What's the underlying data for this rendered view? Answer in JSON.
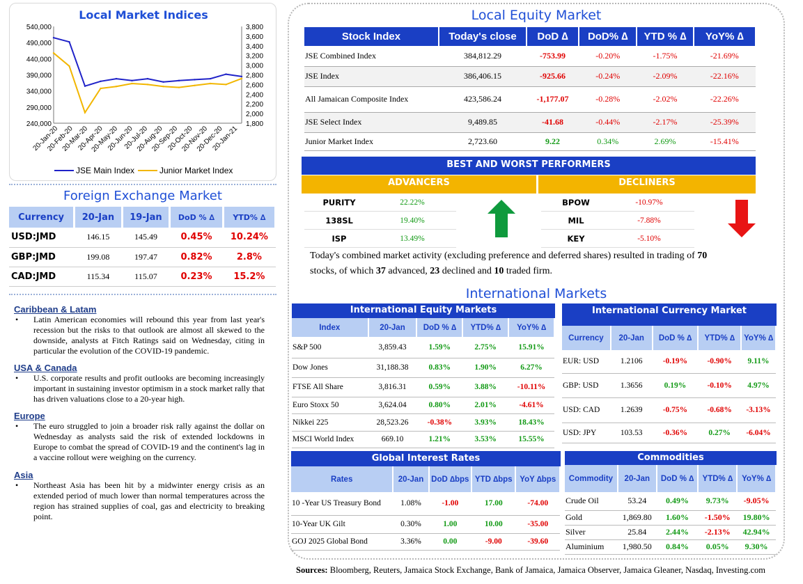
{
  "local_indices": {
    "title": "Local Market Indices",
    "left_axis": [
      "540,000",
      "490,000",
      "440,000",
      "390,000",
      "340,000",
      "290,000",
      "240,000"
    ],
    "right_axis": [
      "3,800",
      "3,600",
      "3,400",
      "3,200",
      "3,000",
      "2,800",
      "2,600",
      "2,400",
      "2,200",
      "2,000",
      "1,800"
    ],
    "x_labels": [
      "20-Jan-20",
      "20-Feb-20",
      "20-Mar-20",
      "20-Apr-20",
      "20-May-20",
      "20-Jun-20",
      "20-Jul-20",
      "20-Aug-20",
      "20-Sep-20",
      "20-Oct-20",
      "20-Nov-20",
      "20-Dec-20",
      "20-Jan-21"
    ],
    "legend": [
      "JSE Main Index",
      "Junior Market Index"
    ],
    "colors": {
      "main": "#1f22c8",
      "junior": "#f2b600"
    }
  },
  "chart_data": {
    "type": "line",
    "title": "Local Market Indices",
    "x": [
      "20-Jan-20",
      "20-Feb-20",
      "20-Mar-20",
      "20-Apr-20",
      "20-May-20",
      "20-Jun-20",
      "20-Jul-20",
      "20-Aug-20",
      "20-Sep-20",
      "20-Oct-20",
      "20-Nov-20",
      "20-Dec-20",
      "20-Jan-21"
    ],
    "series": [
      {
        "name": "JSE Main Index",
        "axis": "left",
        "values": [
          505000,
          492000,
          355000,
          370000,
          378000,
          372000,
          378000,
          368000,
          372000,
          375000,
          378000,
          392000,
          384812
        ]
      },
      {
        "name": "Junior Market Index",
        "axis": "right",
        "values": [
          3250,
          2980,
          2020,
          2520,
          2560,
          2620,
          2600,
          2560,
          2540,
          2580,
          2620,
          2600,
          2723.6
        ]
      }
    ],
    "ylim_left": [
      240000,
      540000
    ],
    "ylim_right": [
      1800,
      3800
    ]
  },
  "fx": {
    "title": "Foreign Exchange Market",
    "headers": [
      "Currency",
      "20-Jan",
      "19-Jan",
      "DoD % ∆",
      "YTD% ∆"
    ],
    "rows": [
      {
        "cur": "USD:JMD",
        "a": "146.15",
        "b": "145.49",
        "dod": "0.45%",
        "ytd": "10.24%"
      },
      {
        "cur": "GBP:JMD",
        "a": "199.08",
        "b": "197.47",
        "dod": "0.82%",
        "ytd": "2.8%"
      },
      {
        "cur": "CAD:JMD",
        "a": "115.34",
        "b": "115.07",
        "dod": "0.23%",
        "ytd": "15.2%"
      }
    ]
  },
  "news": [
    {
      "head": "Caribbean & Latam",
      "text": "Latin American economies will rebound this year from last year's recession but the risks to that outlook are almost all skewed to the downside, analysts at Fitch Ratings said on Wednesday, citing in particular the evolution of the COVID-19 pandemic."
    },
    {
      "head": "USA & Canada",
      "text": "U.S. corporate results and profit outlooks are becoming increasingly important in sustaining investor optimism in a stock market rally that has driven valuations close to a 20-year high."
    },
    {
      "head": "Europe",
      "text": "The euro struggled to join a broader risk rally against the dollar on Wednesday as analysts said the risk of extended lockdowns in Europe to combat the spread of COVID-19 and the continent's lag in a vaccine rollout were weighing on the currency."
    },
    {
      "head": "Asia",
      "text": "Northeast Asia has been hit by a midwinter energy crisis as an extended period of much lower than normal temperatures across the region has strained supplies of coal, gas and electricity to breaking point."
    }
  ],
  "bullet": "•",
  "equity": {
    "title": "Local Equity Market",
    "headers": [
      "Stock Index",
      "Today's close",
      "DoD  ∆",
      "DoD% ∆",
      "YTD % ∆",
      "YoY% ∆"
    ],
    "rows": [
      {
        "name": "JSE Combined Index",
        "close": "384,812.29",
        "dod": "-753.99",
        "dodp": "-0.20%",
        "ytd": "-1.75%",
        "yoy": "-21.69%"
      },
      {
        "name": "JSE Index",
        "close": "386,406.15",
        "dod": "-925.66",
        "dodp": "-0.24%",
        "ytd": "-2.09%",
        "yoy": "-22.16%"
      },
      {
        "name": "All Jamaican Composite Index",
        "close": "423,586.24",
        "dod": "-1,177.07",
        "dodp": "-0.28%",
        "ytd": "-2.02%",
        "yoy": "-22.26%"
      },
      {
        "name": "JSE Select Index",
        "close": "9,489.85",
        "dod": "-41.68",
        "dodp": "-0.44%",
        "ytd": "-2.17%",
        "yoy": "-25.39%"
      },
      {
        "name": "Junior Market Index",
        "close": "2,723.60",
        "dod": "9.22",
        "dodp": "0.34%",
        "ytd": "2.69%",
        "yoy": "-15.41%"
      }
    ]
  },
  "performers": {
    "title": "BEST AND WORST PERFORMERS",
    "adv_title": "ADVANCERS",
    "dec_title": "DECLINERS",
    "advancers": [
      {
        "t": "PURITY",
        "v": "22.22%"
      },
      {
        "t": "138SL",
        "v": "19.40%"
      },
      {
        "t": "ISP",
        "v": "13.49%"
      }
    ],
    "decliners": [
      {
        "t": "BPOW",
        "v": "-10.97%"
      },
      {
        "t": "MIL",
        "v": "-7.88%"
      },
      {
        "t": "KEY",
        "v": "-5.10%"
      }
    ]
  },
  "activity": {
    "p1": "Today's combined market activity (excluding preference and deferred shares) resulted in trading of ",
    "n1": "70",
    "p2": "stocks, of which ",
    "n2": "37",
    "p3": " advanced, ",
    "n3": "23",
    "p4": " declined and ",
    "n4": "10",
    "p5": " traded firm."
  },
  "intl_title": "International Markets",
  "intl_equity": {
    "title": "International Equity Markets",
    "headers": [
      "Index",
      "20-Jan",
      "DoD % ∆",
      "YTD% ∆",
      "YoY% ∆"
    ],
    "rows": [
      {
        "n": "S&P 500",
        "v": "3,859.43",
        "d": "1.59%",
        "y": "2.75%",
        "yy": "15.91%"
      },
      {
        "n": "Dow Jones",
        "v": "31,188.38",
        "d": "0.83%",
        "y": "1.90%",
        "yy": "6.27%"
      },
      {
        "n": "FTSE All Share",
        "v": "3,816.31",
        "d": "0.59%",
        "y": "3.88%",
        "yy": "-10.11%"
      },
      {
        "n": "Euro Stoxx 50",
        "v": "3,624.04",
        "d": "0.80%",
        "y": "2.01%",
        "yy": "-4.61%"
      },
      {
        "n": "Nikkei 225",
        "v": "28,523.26",
        "d": "-0.38%",
        "y": "3.93%",
        "yy": "18.43%"
      },
      {
        "n": "MSCI World Index",
        "v": "669.10",
        "d": "1.21%",
        "y": "3.53%",
        "yy": "15.55%"
      }
    ]
  },
  "intl_fx": {
    "title": "International Currency Market",
    "headers": [
      "Currency",
      "20-Jan",
      "DoD % ∆",
      "YTD% ∆",
      "YoY% ∆"
    ],
    "rows": [
      {
        "n": "EUR: USD",
        "v": "1.2106",
        "d": "-0.19%",
        "y": "-0.90%",
        "yy": "9.11%"
      },
      {
        "n": "GBP: USD",
        "v": "1.3656",
        "d": "0.19%",
        "y": "-0.10%",
        "yy": "4.97%"
      },
      {
        "n": "USD: CAD",
        "v": "1.2639",
        "d": "-0.75%",
        "y": "-0.68%",
        "yy": "-3.13%"
      },
      {
        "n": "USD: JPY",
        "v": "103.53",
        "d": "-0.36%",
        "y": "0.27%",
        "yy": "-6.04%"
      }
    ]
  },
  "rates": {
    "title": "Global Interest Rates",
    "headers": [
      "Rates",
      "20-Jan",
      "DoD ∆bps",
      "YTD ∆bps",
      "YoY ∆bps"
    ],
    "rows": [
      {
        "n": "10 -Year US Treasury Bond",
        "v": "1.08%",
        "d": "-1.00",
        "y": "17.00",
        "yy": "-74.00"
      },
      {
        "n": "10-Year UK Gilt",
        "v": "0.30%",
        "d": "1.00",
        "y": "10.00",
        "yy": "-35.00"
      },
      {
        "n": "GOJ 2025 Global Bond",
        "v": "3.36%",
        "d": "0.00",
        "y": "-9.00",
        "yy": "-39.60"
      }
    ]
  },
  "commodities": {
    "title": "Commodities",
    "headers": [
      "Commodity",
      "20-Jan",
      "DoD % ∆",
      "YTD% ∆",
      "YoY% ∆"
    ],
    "rows": [
      {
        "n": "Crude Oil",
        "v": "53.24",
        "d": "0.49%",
        "y": "9.73%",
        "yy": "-9.05%"
      },
      {
        "n": "Gold",
        "v": "1,869.80",
        "d": "1.60%",
        "y": "-1.50%",
        "yy": "19.80%"
      },
      {
        "n": "Silver",
        "v": "25.84",
        "d": "2.44%",
        "y": "-2.13%",
        "yy": "42.94%"
      },
      {
        "n": "Aluminium",
        "v": "1,980.50",
        "d": "0.84%",
        "y": "0.05%",
        "yy": "9.30%"
      }
    ]
  },
  "sources": {
    "label": "Sources:",
    "text": " Bloomberg, Reuters, Jamaica Stock Exchange, Bank of Jamaica, Jamaica Observer, Jamaica Gleaner, Nasdaq, Investing.com"
  }
}
